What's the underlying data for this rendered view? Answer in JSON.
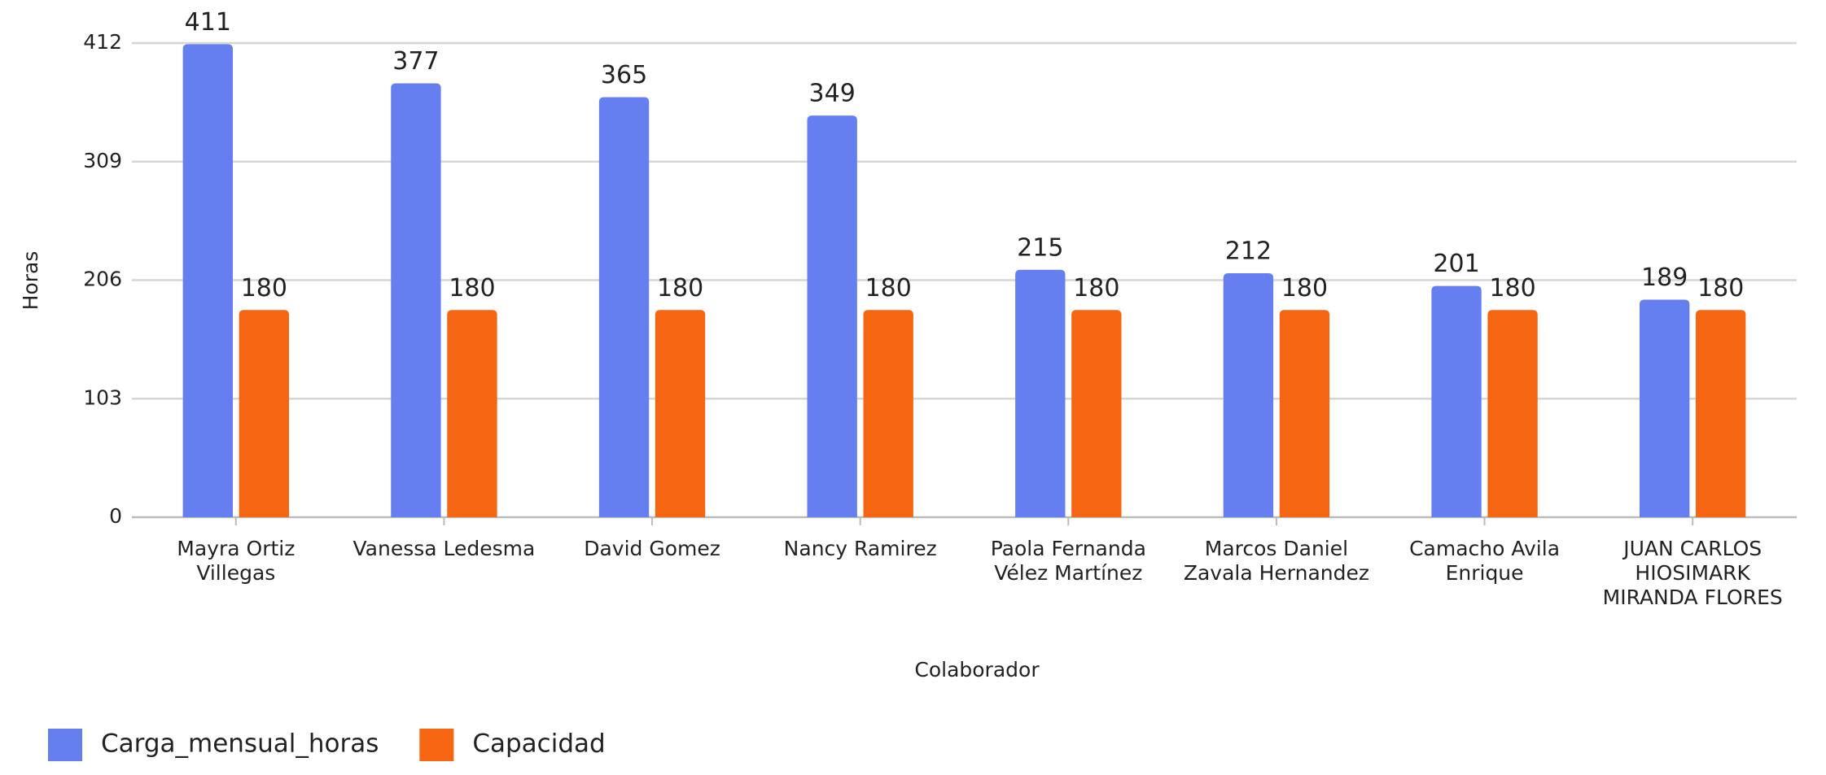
{
  "chart_data": {
    "type": "bar",
    "x_label": "Colaborador",
    "y_label": "Horas",
    "categories": [
      "Mayra Ortiz Villegas",
      "Vanessa Ledesma",
      "David Gomez",
      "Nancy Ramirez",
      "Paola Fernanda Vélez Martínez",
      "Marcos Daniel Zavala Hernandez",
      "Camacho Avila Enrique",
      "JUAN CARLOS HIOSIMARK MIRANDA FLORES"
    ],
    "series": [
      {
        "name": "Carga_mensual_horas",
        "color": "#657ef0",
        "values": [
          411,
          377,
          365,
          349,
          215,
          212,
          201,
          189
        ]
      },
      {
        "name": "Capacidad",
        "color": "#f66511",
        "values": [
          180,
          180,
          180,
          180,
          180,
          180,
          180,
          180
        ]
      }
    ],
    "ylim": [
      0,
      412
    ],
    "yticks": [
      0,
      103,
      206,
      309,
      412
    ],
    "grid": true,
    "legend": "bottom-left"
  }
}
